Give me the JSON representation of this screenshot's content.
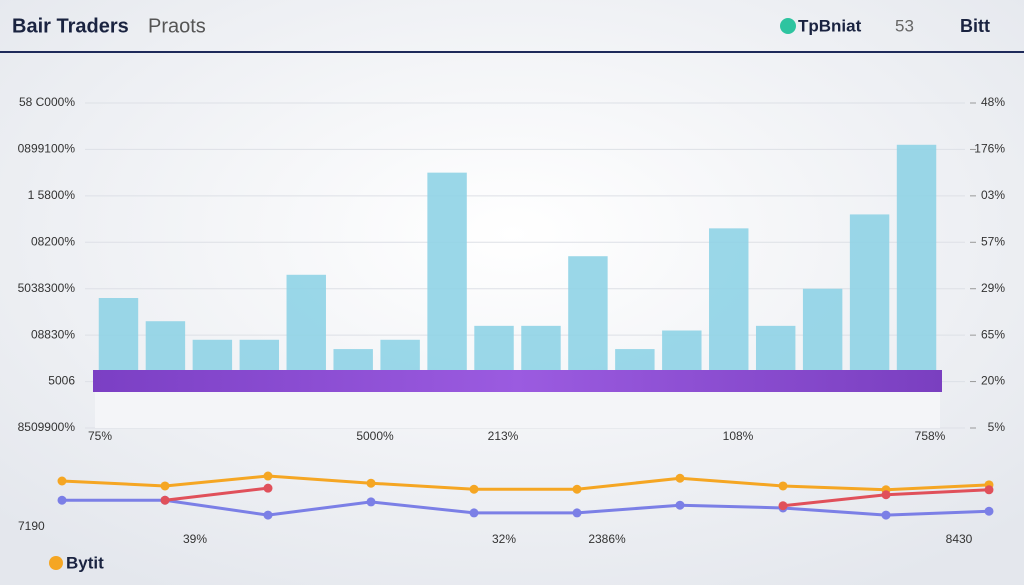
{
  "header": {
    "title": "Bair Traders",
    "subtitle": "Praots",
    "brand": "TpBniat",
    "code": "53",
    "ticker": "Bitt"
  },
  "chart_data": [
    {
      "type": "bar",
      "color": "#8fd3e6",
      "categories": [
        null,
        null,
        null,
        null,
        null,
        null,
        null,
        null,
        null,
        null,
        null,
        null,
        null,
        null,
        null,
        null,
        null,
        null
      ],
      "values": [
        2.8,
        2.3,
        1.9,
        1.9,
        3.3,
        1.7,
        1.9,
        5.5,
        2.2,
        2.2,
        3.7,
        1.7,
        2.1,
        4.3,
        2.2,
        3.0,
        4.6,
        6.1
      ],
      "ylim": [
        0,
        7
      ],
      "yticks": [
        {
          "value": 0,
          "label": "8509900%"
        },
        {
          "value": 1,
          "label": "5006"
        },
        {
          "value": 2,
          "label": "08830%"
        },
        {
          "value": 3,
          "label": "5038300%"
        },
        {
          "value": 4,
          "label": "08200%"
        },
        {
          "value": 5,
          "label": "1 5800%"
        },
        {
          "value": 6,
          "label": "0899100%"
        },
        {
          "value": 7,
          "label": "58 C000%"
        }
      ],
      "y2lim": [
        0,
        7
      ],
      "y2ticks": [
        {
          "value": 0,
          "label": "5%"
        },
        {
          "value": 1,
          "label": "20%"
        },
        {
          "value": 2,
          "label": "65%"
        },
        {
          "value": 3,
          "label": "29%"
        },
        {
          "value": 4,
          "label": "57%"
        },
        {
          "value": 5,
          "label": "03%"
        },
        {
          "value": 6,
          "label": "176%"
        },
        {
          "value": 7,
          "label": "48%"
        }
      ],
      "x_labels": [
        "75%",
        "5000%",
        "213%",
        "108%",
        "758%"
      ],
      "grid": true
    },
    {
      "type": "line",
      "categories": [
        null,
        "39%",
        null,
        null,
        "32%",
        "2386%",
        null,
        null,
        null,
        "8430"
      ],
      "ylim": [
        0,
        10
      ],
      "annotation": "7190",
      "series": [
        {
          "name": "Bytit",
          "color": "#f5a623",
          "values": [
            8.0,
            7.1,
            8.9,
            7.6,
            6.5,
            6.5,
            8.5,
            7.1,
            6.4,
            7.3
          ]
        },
        {
          "color": "#7b7fe6",
          "values": [
            4.5,
            4.5,
            1.8,
            4.2,
            2.2,
            2.2,
            3.6,
            3.1,
            1.8,
            2.5
          ]
        },
        {
          "color": "#e0505a",
          "values": [
            null,
            4.5,
            6.7,
            null,
            null,
            null,
            null,
            3.5,
            5.5,
            6.4
          ]
        }
      ]
    }
  ]
}
